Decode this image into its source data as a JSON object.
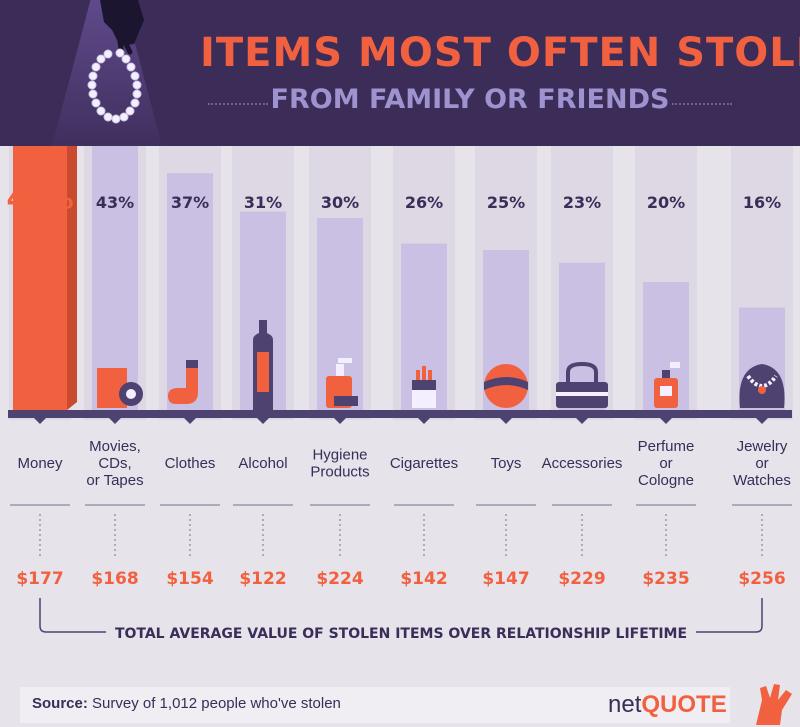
{
  "title": "ITEMS MOST OFTEN STOLEN",
  "subtitle": "FROM FAMILY OR FRIENDS",
  "footer": {
    "source_label": "Source:",
    "source_text": "Survey of 1,012 people who've stolen",
    "logo_net": "net",
    "logo_quote": "QUOTE"
  },
  "colors": {
    "header_bg": "#3b2c58",
    "accent": "#f2613f",
    "bar": "#c9c0e3",
    "bar_icon": "#7a6aa6",
    "subtitle": "#9f93cf",
    "text": "#3b2c58"
  },
  "icons": [
    "necklace-hand-icon",
    "money-icon",
    "movie-disc-icon",
    "sock-icon",
    "bottle-icon",
    "soap-pump-icon",
    "cigarette-pack-icon",
    "ball-icon",
    "handbag-icon",
    "perfume-icon",
    "necklace-bust-icon",
    "hand-logo-icon"
  ],
  "chart_data": {
    "type": "bar",
    "categories": [
      "Money",
      "Movies, CDs, or Tapes",
      "Clothes",
      "Alcohol",
      "Hygiene Products",
      "Cigarettes",
      "Toys",
      "Accessories",
      "Perfume or Cologne",
      "Jewelry or Watches"
    ],
    "category_lines": [
      [
        "Money"
      ],
      [
        "Movies,",
        "CDs,",
        "or Tapes"
      ],
      [
        "Clothes"
      ],
      [
        "Alcohol"
      ],
      [
        "Hygiene",
        "Products"
      ],
      [
        "Cigarettes"
      ],
      [
        "Toys"
      ],
      [
        "Accessories"
      ],
      [
        "Perfume",
        "or",
        "Cologne"
      ],
      [
        "Jewelry",
        "or",
        "Watches"
      ]
    ],
    "values": [
      47,
      43,
      37,
      31,
      30,
      26,
      25,
      23,
      20,
      16
    ],
    "value_labels": [
      "47%",
      "43%",
      "37%",
      "31%",
      "30%",
      "26%",
      "25%",
      "23%",
      "20%",
      "16%"
    ],
    "avg_value": [
      177,
      168,
      154,
      122,
      224,
      142,
      147,
      229,
      235,
      256
    ],
    "avg_value_labels": [
      "$177",
      "$168",
      "$154",
      "$122",
      "$224",
      "$142",
      "$147",
      "$229",
      "$235",
      "$256"
    ],
    "bracket_label": "TOTAL AVERAGE VALUE OF STOLEN ITEMS OVER RELATIONSHIP LIFETIME",
    "ylim": [
      0,
      50
    ],
    "grid": false,
    "highlight_index": 0
  }
}
